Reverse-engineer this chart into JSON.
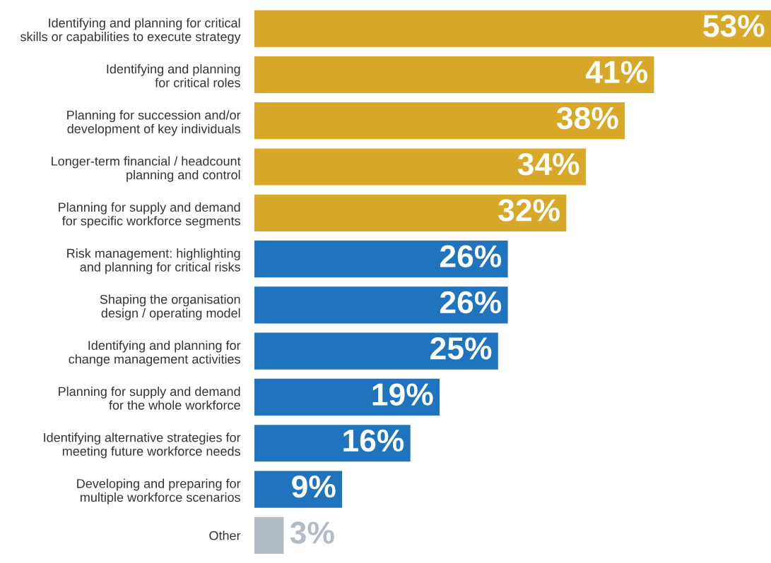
{
  "chart_data": {
    "type": "bar",
    "orientation": "horizontal",
    "categories": [
      "Identifying and planning for critical\nskills or capabilities to execute strategy",
      "Identifying and planning\nfor critical roles",
      "Planning for succession and/or\ndevelopment of key individuals",
      "Longer-term financial / headcount\nplanning and control",
      "Planning for supply and demand\nfor specific workforce segments",
      "Risk management: highlighting\nand planning for critical risks",
      "Shaping the organisation\ndesign / operating model",
      "Identifying and planning for\nchange management activities",
      "Planning for supply and demand\nfor the whole workforce",
      "Identifying alternative strategies for\nmeeting future workforce needs",
      "Developing and preparing for\nmultiple workforce scenarios",
      "Other"
    ],
    "values": [
      53,
      41,
      38,
      34,
      32,
      26,
      26,
      25,
      19,
      16,
      9,
      3
    ],
    "colors": [
      "#d8a829",
      "#d8a829",
      "#d8a829",
      "#d8a829",
      "#d8a829",
      "#1f74bd",
      "#1f74bd",
      "#1f74bd",
      "#1f74bd",
      "#1f74bd",
      "#1f74bd",
      "#b3bcc4"
    ],
    "value_labels": [
      "53%",
      "41%",
      "38%",
      "34%",
      "32%",
      "26%",
      "26%",
      "25%",
      "19%",
      "16%",
      "9%",
      "3%"
    ],
    "xlim": [
      0,
      53
    ],
    "grid": false,
    "legend": false
  }
}
